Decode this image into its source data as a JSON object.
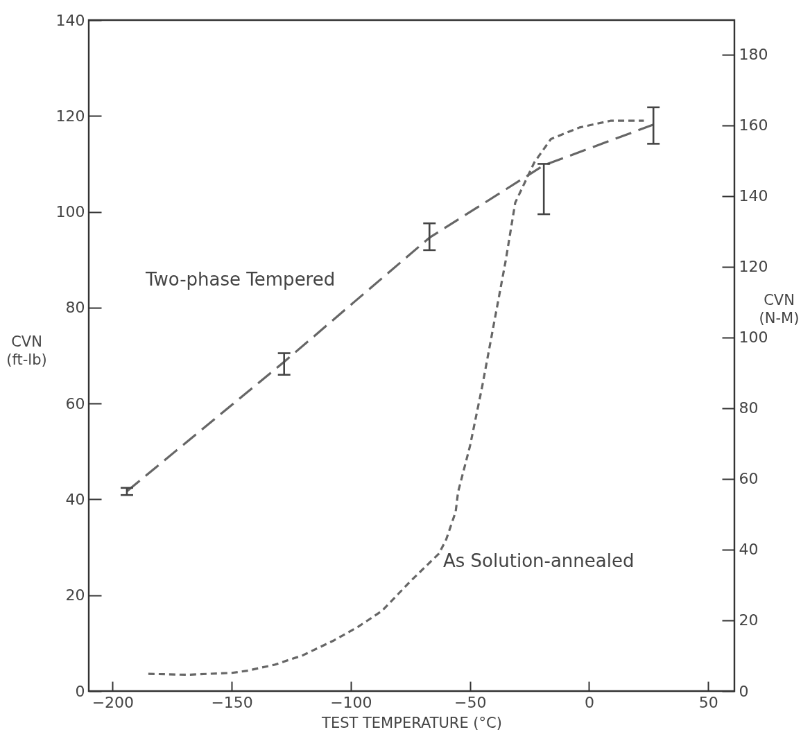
{
  "chart_data": {
    "type": "line",
    "xlabel": "TEST TEMPERATURE (°C)",
    "ylabel": "CVN (ft-lb)",
    "y2label": "CVN (N-M)",
    "xlim": [
      -210,
      61
    ],
    "xticks": [
      -200,
      -150,
      -100,
      -50,
      0,
      50
    ],
    "ylim": [
      0,
      140
    ],
    "yticks": [
      0,
      20,
      40,
      60,
      80,
      100,
      120,
      140
    ],
    "y2lim": [
      0,
      189.8
    ],
    "y2ticks": [
      0,
      20,
      40,
      60,
      80,
      100,
      120,
      140,
      160,
      180
    ],
    "grid": false,
    "series": [
      {
        "name": "Two-phase Tempered",
        "color": "#666666",
        "line_style": "dashed",
        "x": [
          -194,
          -128,
          -67,
          -19,
          27
        ],
        "values": [
          41.7,
          68.7,
          94.6,
          109.7,
          118.2
        ],
        "errors": [
          [
            40.9,
            42.4
          ],
          [
            66,
            70.5
          ],
          [
            92,
            97.6
          ],
          [
            99.5,
            110
          ],
          [
            114.2,
            121.8
          ]
        ]
      },
      {
        "name": "As Solution-annealed",
        "color": "#666666",
        "line_style": "dotted",
        "x": [
          -185,
          -169,
          -150,
          -144,
          -132,
          -120,
          -107,
          -97,
          -87,
          -75,
          -63,
          -60,
          -56,
          -55,
          -50,
          -45,
          -40,
          -35,
          -31,
          -23,
          -16,
          -4,
          9,
          23
        ],
        "values": [
          3.6,
          3.4,
          3.8,
          4.2,
          5.5,
          7.5,
          10.6,
          13.4,
          16.7,
          22.9,
          28.7,
          31.6,
          37.4,
          41.5,
          51.1,
          63.2,
          76.5,
          89.8,
          101.9,
          110.3,
          115.2,
          117.6,
          119,
          119
        ]
      }
    ]
  }
}
